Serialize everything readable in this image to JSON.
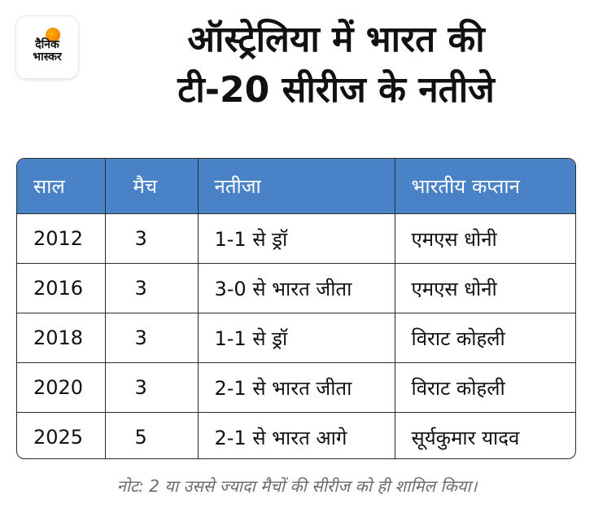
{
  "logo": {
    "line1": "दैनिक",
    "line2": "भास्कर"
  },
  "title": {
    "line1": "ऑस्ट्रेलिया में भारत की",
    "line2": "टी-20 सीरीज के नतीजे"
  },
  "table": {
    "headers": [
      "साल",
      "मैच",
      "नतीजा",
      "भारतीय कप्तान"
    ],
    "rows": [
      [
        "2012",
        "3",
        "1-1 से ड्रॉ",
        "एमएस धोनी"
      ],
      [
        "2016",
        "3",
        "3-0 से भारत जीता",
        "एमएस धोनी"
      ],
      [
        "2018",
        "3",
        "1-1 से ड्रॉ",
        "विराट कोहली"
      ],
      [
        "2020",
        "3",
        "2-1 से भारत जीता",
        "विराट कोहली"
      ],
      [
        "2025",
        "5",
        "2-1 से भारत आगे",
        "सूर्यकुमार यादव"
      ]
    ]
  },
  "note": "नोट: 2 या उससे ज्यादा मैचों की सीरीज को ही शामिल किया।",
  "colors": {
    "header_bg": "#4a82c8",
    "note": "#6b6b6b",
    "logo_sun": "#f26b00"
  }
}
